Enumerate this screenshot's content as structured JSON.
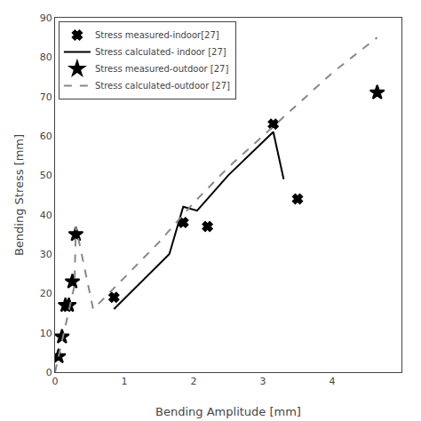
{
  "chart_data": {
    "type": "line",
    "xlabel": "Bending Amplitude [mm]",
    "ylabel": "Bending Stress [mm]",
    "xlim": [
      0,
      5.0
    ],
    "ylim": [
      0,
      90
    ],
    "xticks": [
      0,
      1,
      2,
      3,
      4
    ],
    "yticks": [
      0,
      10,
      20,
      30,
      40,
      50,
      60,
      70,
      80,
      90
    ],
    "grid": false,
    "legend": "upper left",
    "series": [
      {
        "name": "Stress measured-indoor[27]",
        "type": "scatter",
        "marker": "x",
        "color": "#000000",
        "x": [
          0.85,
          1.85,
          2.2,
          3.15,
          3.5
        ],
        "values": [
          19,
          38,
          37,
          63,
          44
        ]
      },
      {
        "name": "Stress calculated- indoor [27]",
        "type": "line",
        "line_style": "solid",
        "color": "#000000",
        "x": [
          0.85,
          1.65,
          1.85,
          2.05,
          2.5,
          3.15,
          3.3
        ],
        "values": [
          16,
          30,
          42,
          41,
          50,
          61,
          49
        ]
      },
      {
        "name": "Stress measured-outdoor [27]",
        "type": "scatter",
        "marker": "star",
        "color": "#000000",
        "x": [
          0.05,
          0.1,
          0.15,
          0.2,
          0.25,
          0.3,
          4.65
        ],
        "values": [
          4,
          9,
          17,
          17,
          23,
          35,
          71
        ]
      },
      {
        "name": "Stress calculated-outdoor [27]",
        "type": "line",
        "line_style": "dashed",
        "color": "#888888",
        "x": [
          0.0,
          0.28,
          0.3,
          0.55,
          1.0,
          1.5,
          2.0,
          2.5,
          3.0,
          3.5,
          4.0,
          4.65
        ],
        "values": [
          0,
          22,
          37,
          16,
          24,
          33,
          43,
          52,
          60,
          68,
          76,
          85
        ]
      }
    ]
  }
}
